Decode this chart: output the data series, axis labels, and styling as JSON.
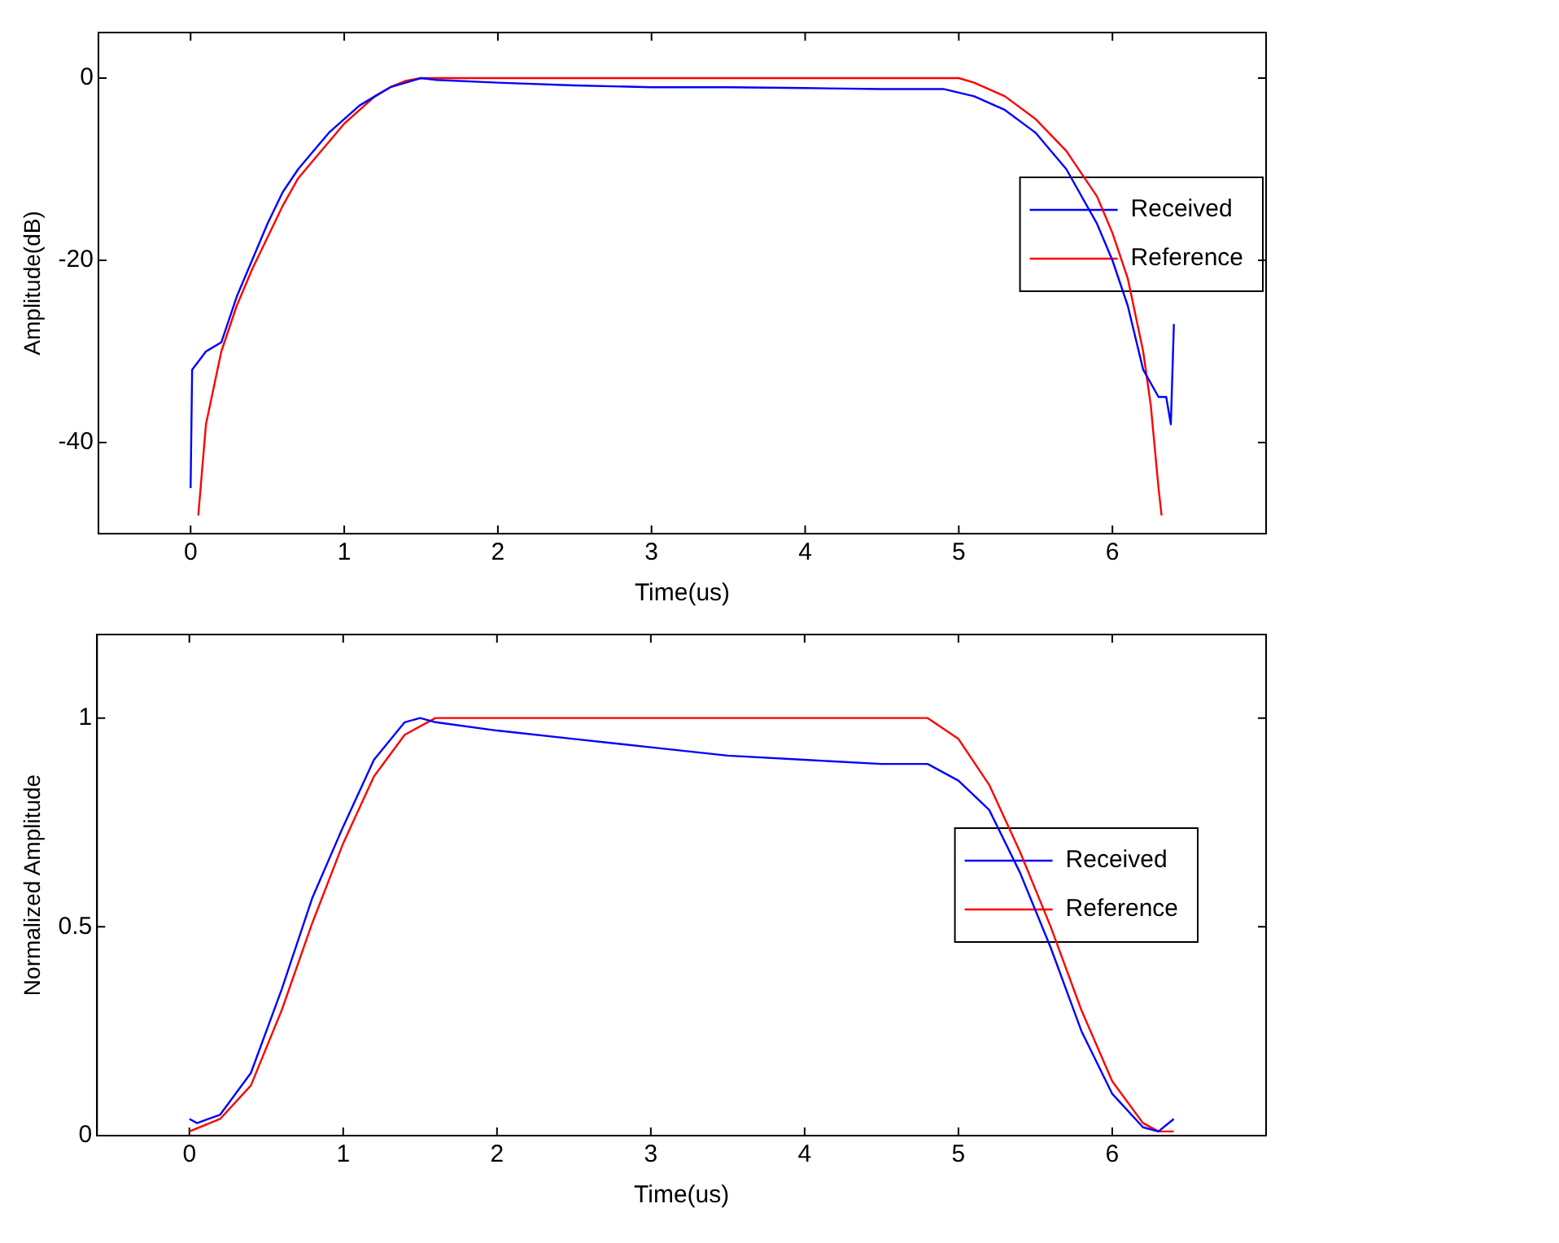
{
  "chart_data": [
    {
      "type": "line",
      "xlabel": "Time(us)",
      "ylabel": "Amplitude(dB)",
      "xlim": [
        -0.6,
        7
      ],
      "xticks": [
        0,
        1,
        2,
        3,
        4,
        5,
        6
      ],
      "ylim": [
        -50,
        5
      ],
      "yticks": [
        -40,
        -20,
        0
      ],
      "grid": false,
      "legend": "right",
      "marker": "none",
      "line_style": "solid",
      "series": [
        {
          "name": "Received",
          "color": "#0000ff",
          "x": [
            0,
            0.01,
            0.1,
            0.2,
            0.3,
            0.4,
            0.5,
            0.6,
            0.7,
            0.8,
            0.9,
            1.0,
            1.1,
            1.2,
            1.3,
            1.4,
            1.5,
            1.6,
            2,
            2.5,
            3,
            3.5,
            4,
            4.5,
            4.9,
            5.1,
            5.3,
            5.5,
            5.7,
            5.9,
            6.0,
            6.1,
            6.2,
            6.3,
            6.35,
            6.38,
            6.4
          ],
          "values": [
            -45,
            -32,
            -30,
            -29,
            -24,
            -20,
            -16,
            -12.5,
            -10,
            -8,
            -6,
            -4.5,
            -3,
            -2,
            -1,
            -0.5,
            0,
            -0.2,
            -0.5,
            -0.8,
            -1,
            -1,
            -1.1,
            -1.2,
            -1.2,
            -2,
            -3.5,
            -6,
            -10,
            -16,
            -20,
            -25,
            -32,
            -35,
            -35,
            -38,
            -27
          ]
        },
        {
          "name": "Reference",
          "color": "#ff0000",
          "x": [
            0.05,
            0.1,
            0.2,
            0.3,
            0.4,
            0.5,
            0.6,
            0.7,
            0.8,
            0.9,
            1.0,
            1.1,
            1.2,
            1.3,
            1.4,
            1.5,
            5.0,
            5.1,
            5.3,
            5.5,
            5.7,
            5.9,
            6.0,
            6.1,
            6.2,
            6.25,
            6.3,
            6.32
          ],
          "values": [
            -48,
            -38,
            -30,
            -25,
            -21,
            -17.5,
            -14,
            -11,
            -9,
            -7,
            -5,
            -3.5,
            -2,
            -1,
            -0.3,
            0,
            0,
            -0.5,
            -2,
            -4.5,
            -8,
            -13,
            -17,
            -22,
            -30,
            -36,
            -45,
            -48
          ]
        }
      ]
    },
    {
      "type": "line",
      "xlabel": "Time(us)",
      "ylabel": "Normalized Amplitude",
      "xlim": [
        -0.6,
        7
      ],
      "xticks": [
        0,
        1,
        2,
        3,
        4,
        5,
        6
      ],
      "ylim": [
        0,
        1.2
      ],
      "yticks": [
        0,
        0.5,
        1
      ],
      "grid": false,
      "legend": "right",
      "marker": "none",
      "line_style": "solid",
      "series": [
        {
          "name": "Received",
          "color": "#0000ff",
          "x": [
            0,
            0.05,
            0.2,
            0.4,
            0.6,
            0.8,
            1.0,
            1.2,
            1.4,
            1.5,
            1.6,
            2,
            2.5,
            3,
            3.5,
            4,
            4.5,
            4.8,
            5.0,
            5.2,
            5.4,
            5.6,
            5.8,
            6.0,
            6.2,
            6.3,
            6.4
          ],
          "values": [
            0.04,
            0.03,
            0.05,
            0.15,
            0.35,
            0.57,
            0.74,
            0.9,
            0.99,
            1.0,
            0.99,
            0.97,
            0.95,
            0.93,
            0.91,
            0.9,
            0.89,
            0.89,
            0.85,
            0.78,
            0.63,
            0.45,
            0.25,
            0.1,
            0.02,
            0.01,
            0.04
          ]
        },
        {
          "name": "Reference",
          "color": "#ff0000",
          "x": [
            0,
            0.2,
            0.4,
            0.6,
            0.8,
            1.0,
            1.2,
            1.4,
            1.6,
            4.8,
            5.0,
            5.2,
            5.4,
            5.6,
            5.8,
            6.0,
            6.2,
            6.3,
            6.4
          ],
          "values": [
            0.01,
            0.04,
            0.12,
            0.3,
            0.51,
            0.7,
            0.86,
            0.96,
            1.0,
            1.0,
            0.95,
            0.84,
            0.68,
            0.5,
            0.3,
            0.13,
            0.03,
            0.01,
            0.01
          ]
        }
      ]
    }
  ]
}
